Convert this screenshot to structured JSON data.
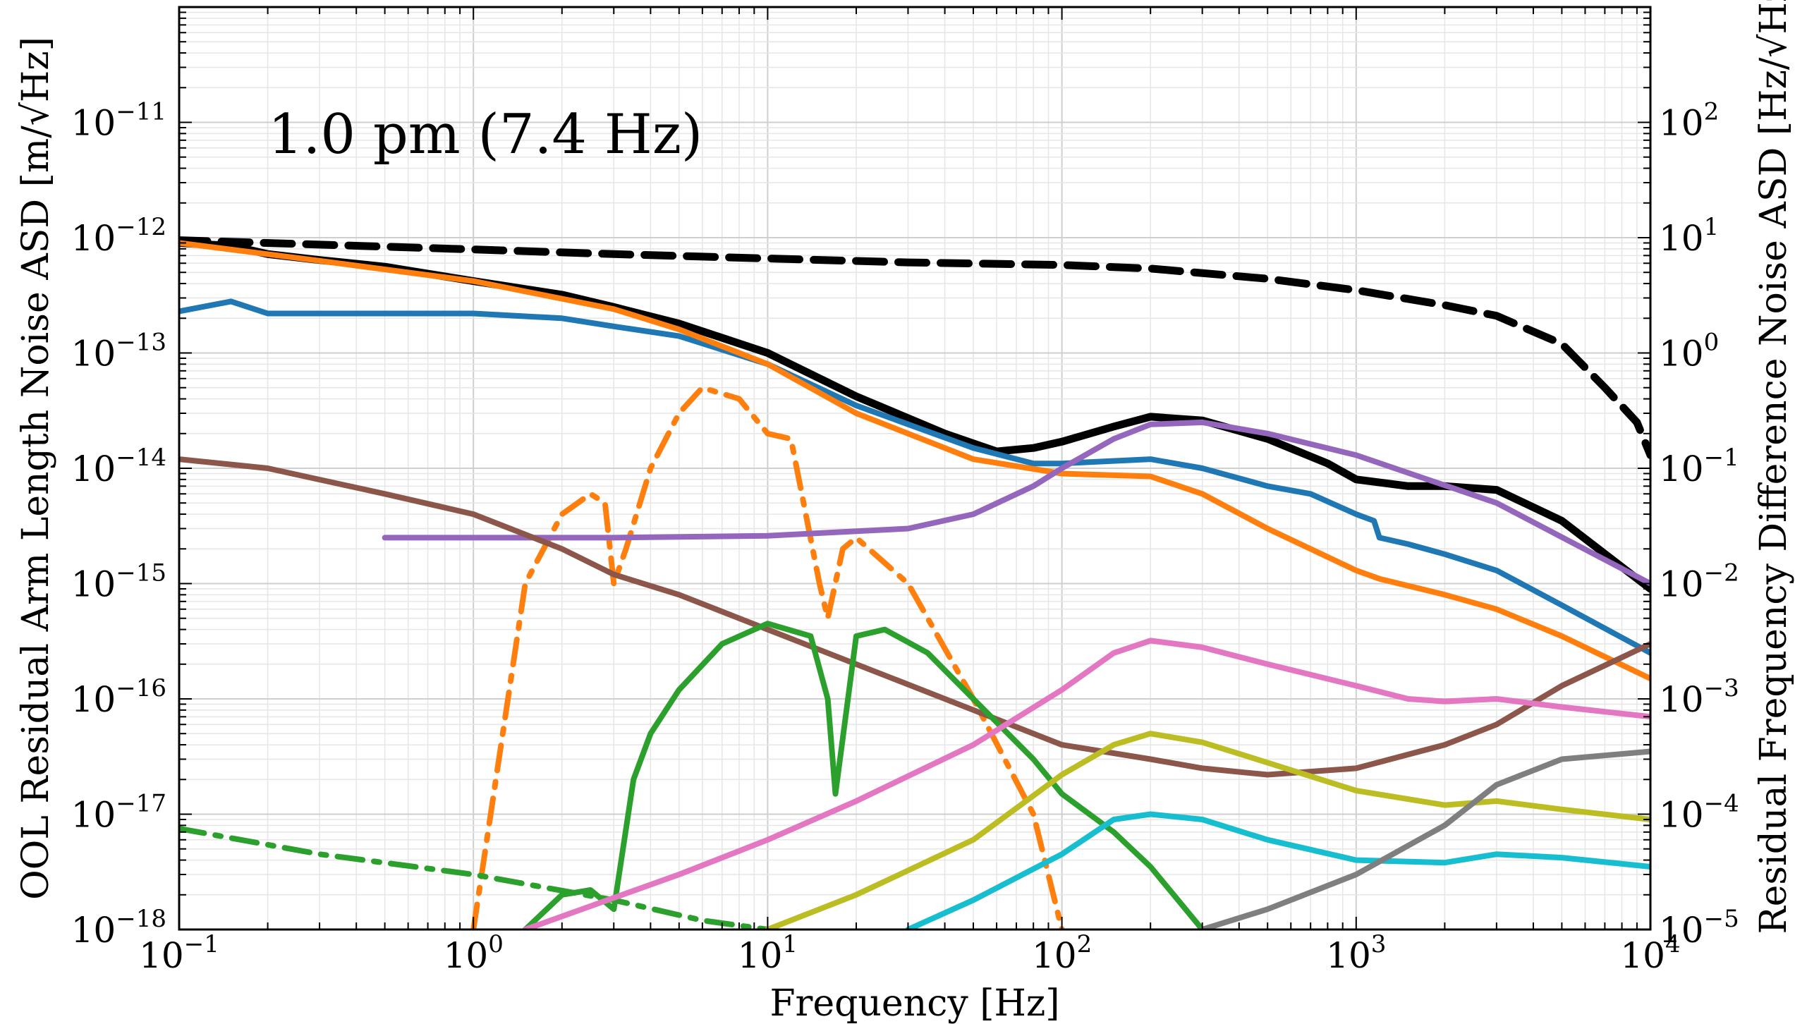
{
  "chart_data": {
    "type": "line",
    "title": "",
    "xlabel": "Frequency [Hz]",
    "ylabel": "OOL Residual Arm Length Noise ASD [m/√Hz]",
    "ylabel_right": "Residual Frequency Difference Noise ASD [Hz/√Hz]",
    "xscale": "log",
    "yscale": "log",
    "xlim": [
      0.1,
      10000
    ],
    "ylim": [
      1e-18,
      1e-10
    ],
    "ylim_right": [
      1e-05,
      1000
    ],
    "grid": true,
    "legend": "none",
    "annotation": "1.0 pm (7.4 Hz)",
    "x_ticks": [
      {
        "base": "10",
        "exp": "−1"
      },
      {
        "base": "10",
        "exp": "0"
      },
      {
        "base": "10",
        "exp": "1"
      },
      {
        "base": "10",
        "exp": "2"
      },
      {
        "base": "10",
        "exp": "3"
      },
      {
        "base": "10",
        "exp": "4"
      }
    ],
    "y_ticks_left": [
      {
        "base": "10",
        "exp": "−18"
      },
      {
        "base": "10",
        "exp": "−17"
      },
      {
        "base": "10",
        "exp": "−16"
      },
      {
        "base": "10",
        "exp": "−15"
      },
      {
        "base": "10",
        "exp": "−14"
      },
      {
        "base": "10",
        "exp": "−13"
      },
      {
        "base": "10",
        "exp": "−12"
      },
      {
        "base": "10",
        "exp": "−11"
      }
    ],
    "y_ticks_right": [
      {
        "base": "10",
        "exp": "−5"
      },
      {
        "base": "10",
        "exp": "−4"
      },
      {
        "base": "10",
        "exp": "−3"
      },
      {
        "base": "10",
        "exp": "−2"
      },
      {
        "base": "10",
        "exp": "−1"
      },
      {
        "base": "10",
        "exp": "0"
      },
      {
        "base": "10",
        "exp": "1"
      },
      {
        "base": "10",
        "exp": "2"
      }
    ],
    "series": [
      {
        "color": "#000000",
        "style": "dashed",
        "x": [
          0.1,
          0.3,
          1,
          3,
          10,
          30,
          100,
          200,
          500,
          1000,
          2000,
          3000,
          5000,
          7000,
          9000,
          10000
        ],
        "y": [
          9.5e-13,
          8.7e-13,
          7.9e-13,
          7.2e-13,
          6.6e-13,
          6.1e-13,
          5.8e-13,
          5.4e-13,
          4.4e-13,
          3.5e-13,
          2.6e-13,
          2.1e-13,
          1.2e-13,
          5e-14,
          2.5e-14,
          1.3e-14
        ]
      },
      {
        "color": "#000000",
        "style": "solid",
        "x": [
          0.1,
          0.15,
          0.2,
          0.3,
          0.5,
          1,
          2,
          3,
          5,
          10,
          20,
          40,
          60,
          80,
          100,
          150,
          200,
          300,
          500,
          800,
          1000,
          1500,
          2000,
          3000,
          5000,
          10000
        ],
        "y": [
          9e-13,
          8.5e-13,
          7.2e-13,
          6.4e-13,
          5.6e-13,
          4.2e-13,
          3.2e-13,
          2.5e-13,
          1.8e-13,
          1e-13,
          4.2e-14,
          2e-14,
          1.4e-14,
          1.5e-14,
          1.7e-14,
          2.3e-14,
          2.8e-14,
          2.6e-14,
          1.8e-14,
          1.1e-14,
          8e-15,
          7e-15,
          7e-15,
          6.5e-15,
          3.5e-15,
          9e-16
        ]
      },
      {
        "color": "#1f77b4",
        "style": "solid",
        "x": [
          0.1,
          0.15,
          0.2,
          0.5,
          1,
          2,
          3,
          5,
          10,
          20,
          50,
          80,
          100,
          200,
          300,
          500,
          700,
          1000,
          1150,
          1200,
          1500,
          2000,
          3000,
          5000,
          10000
        ],
        "y": [
          2.3e-13,
          2.8e-13,
          2.2e-13,
          2.2e-13,
          2.2e-13,
          2e-13,
          1.7e-13,
          1.4e-13,
          8e-14,
          3.5e-14,
          1.5e-14,
          1.1e-14,
          1.1e-14,
          1.2e-14,
          1e-14,
          7e-15,
          6e-15,
          4e-15,
          3.5e-15,
          2.5e-15,
          2.2e-15,
          1.8e-15,
          1.3e-15,
          6.5e-16,
          2.5e-16
        ]
      },
      {
        "color": "#ff7f0e",
        "style": "solid",
        "x": [
          0.1,
          0.3,
          1,
          3,
          5,
          10,
          20,
          50,
          100,
          200,
          300,
          500,
          1000,
          1200,
          2000,
          3000,
          5000,
          10000
        ],
        "y": [
          9e-13,
          6.3e-13,
          4.2e-13,
          2.4e-13,
          1.6e-13,
          8e-14,
          3e-14,
          1.2e-14,
          9e-15,
          8.5e-15,
          6e-15,
          3e-15,
          1.3e-15,
          1.1e-15,
          8e-16,
          6e-16,
          3.5e-16,
          1.5e-16
        ]
      },
      {
        "color": "#ff7f0e",
        "style": "dashdot",
        "x": [
          1,
          1.5,
          2,
          2.5,
          2.8,
          3,
          3.3,
          4,
          5,
          6,
          8,
          10,
          12,
          15,
          16,
          18,
          20,
          30,
          50,
          80,
          100
        ],
        "y": [
          1e-18,
          1e-15,
          4e-15,
          6e-15,
          5e-15,
          1e-15,
          2e-15,
          1e-14,
          3e-14,
          5e-14,
          4e-14,
          2e-14,
          1.8e-14,
          1e-15,
          5e-16,
          2e-15,
          2.5e-15,
          1e-15,
          1e-16,
          1e-17,
          1e-18
        ]
      },
      {
        "color": "#9467bd",
        "style": "solid",
        "x": [
          0.5,
          1,
          3,
          10,
          30,
          50,
          80,
          100,
          150,
          200,
          300,
          500,
          1000,
          3000,
          10000
        ],
        "y": [
          2.5e-15,
          2.5e-15,
          2.5e-15,
          2.6e-15,
          3e-15,
          4e-15,
          7e-15,
          1e-14,
          1.8e-14,
          2.4e-14,
          2.5e-14,
          2e-14,
          1.3e-14,
          5e-15,
          1e-15
        ]
      },
      {
        "color": "#8c564b",
        "style": "solid",
        "x": [
          0.1,
          0.2,
          0.5,
          1,
          2,
          3,
          5,
          10,
          20,
          50,
          100,
          200,
          300,
          500,
          1000,
          2000,
          3000,
          5000,
          10000
        ],
        "y": [
          1.2e-14,
          1e-14,
          6e-15,
          4e-15,
          2e-15,
          1.2e-15,
          8e-16,
          4e-16,
          2e-16,
          8e-17,
          4e-17,
          3e-17,
          2.5e-17,
          2.2e-17,
          2.5e-17,
          4e-17,
          6e-17,
          1.3e-16,
          3e-16
        ]
      },
      {
        "color": "#2ca02c",
        "style": "solid",
        "x": [
          1.5,
          2,
          2.5,
          3,
          3.5,
          4,
          5,
          7,
          10,
          14,
          16,
          17,
          20,
          25,
          35,
          50,
          80,
          100,
          150,
          200,
          300
        ],
        "y": [
          1e-18,
          2e-18,
          2.2e-18,
          1.5e-18,
          2e-17,
          5e-17,
          1.2e-16,
          3e-16,
          4.5e-16,
          3.5e-16,
          1e-16,
          1.5e-17,
          3.5e-16,
          4e-16,
          2.5e-16,
          1e-16,
          3e-17,
          1.5e-17,
          7e-18,
          3.5e-18,
          1e-18
        ]
      },
      {
        "color": "#2ca02c",
        "style": "dashdot",
        "x": [
          0.1,
          0.3,
          1,
          3,
          6,
          10
        ],
        "y": [
          7.5e-18,
          4.5e-18,
          3e-18,
          1.8e-18,
          1.2e-18,
          1e-18
        ]
      },
      {
        "color": "#e377c2",
        "style": "solid",
        "x": [
          1.5,
          2,
          5,
          10,
          20,
          50,
          100,
          150,
          200,
          300,
          500,
          1000,
          1500,
          2000,
          3000,
          5000,
          10000
        ],
        "y": [
          1e-18,
          1.3e-18,
          3e-18,
          6e-18,
          1.3e-17,
          4e-17,
          1.2e-16,
          2.5e-16,
          3.2e-16,
          2.8e-16,
          2e-16,
          1.3e-16,
          1e-16,
          9.5e-17,
          1e-16,
          8.5e-17,
          7e-17
        ]
      },
      {
        "color": "#bcbd22",
        "style": "solid",
        "x": [
          10,
          20,
          50,
          100,
          150,
          200,
          300,
          500,
          1000,
          2000,
          3000,
          5000,
          10000
        ],
        "y": [
          1e-18,
          2e-18,
          6e-18,
          2.2e-17,
          4e-17,
          5e-17,
          4.2e-17,
          2.8e-17,
          1.6e-17,
          1.2e-17,
          1.3e-17,
          1.1e-17,
          9e-18
        ]
      },
      {
        "color": "#17becf",
        "style": "solid",
        "x": [
          30,
          50,
          100,
          150,
          200,
          300,
          500,
          1000,
          2000,
          3000,
          5000,
          10000
        ],
        "y": [
          1e-18,
          1.8e-18,
          4.5e-18,
          9e-18,
          1e-17,
          9e-18,
          6e-18,
          4e-18,
          3.8e-18,
          4.5e-18,
          4.2e-18,
          3.5e-18
        ]
      },
      {
        "color": "#7f7f7f",
        "style": "solid",
        "x": [
          300,
          500,
          1000,
          2000,
          3000,
          5000,
          10000
        ],
        "y": [
          1e-18,
          1.5e-18,
          3e-18,
          8e-18,
          1.8e-17,
          3e-17,
          3.5e-17
        ]
      }
    ]
  }
}
